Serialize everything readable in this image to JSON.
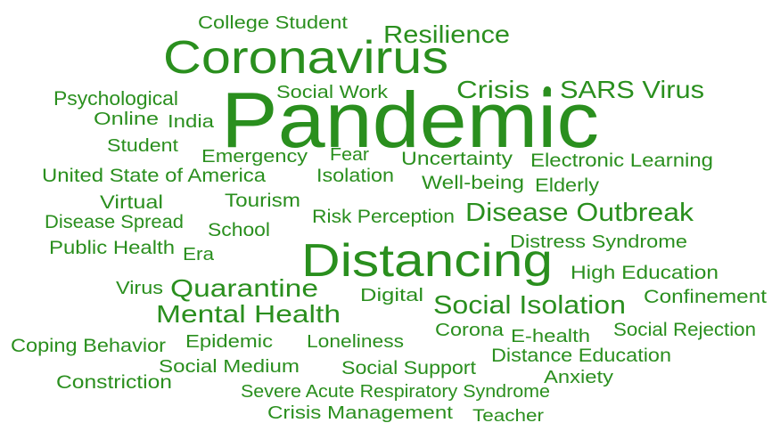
{
  "words": [
    "College Student",
    "Resilience",
    "Coronavirus",
    "Psychological",
    "Social Work",
    "Crisis",
    "SARS Virus",
    "Pandemic",
    "Online",
    "India",
    "Student",
    "Emergency",
    "Fear",
    "Uncertainty",
    "Electronic Learning",
    "United State of America",
    "Isolation",
    "Well-being",
    "Elderly",
    "Virtual",
    "Tourism",
    "Disease Spread",
    "Risk Perception",
    "Disease Outbreak",
    "School",
    "Distress Syndrome",
    "Public Health",
    "Era",
    "Distancing",
    "High Education",
    "Virus",
    "Quarantine",
    "Digital",
    "Confinement",
    "Social Isolation",
    "Mental Health",
    "Corona",
    "E-health",
    "Social Rejection",
    "Coping Behavior",
    "Epidemic",
    "Loneliness",
    "Distance Education",
    "Social Medium",
    "Social Support",
    "Anxiety",
    "Constriction",
    "Severe Acute Respiratory Syndrome",
    "Crisis Management",
    "Teacher"
  ]
}
